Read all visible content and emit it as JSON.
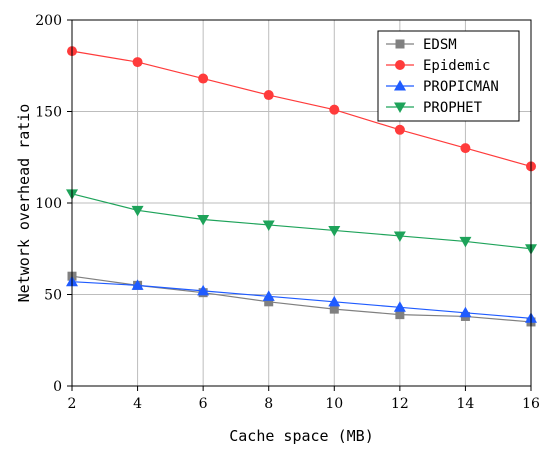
{
  "chart_data": {
    "type": "line",
    "xlabel": "Cache space (MB)",
    "ylabel": "Network overhead ratio",
    "x": [
      2,
      4,
      6,
      8,
      10,
      12,
      14,
      16
    ],
    "xlim": [
      2,
      16
    ],
    "ylim": [
      0,
      200
    ],
    "xticks": [
      "2",
      "4",
      "6",
      "8",
      "10",
      "12",
      "14",
      "16"
    ],
    "yticks": [
      "0",
      "50",
      "100",
      "150",
      "200"
    ],
    "grid": true,
    "legend_position": "top-right",
    "series": [
      {
        "name": "EDSM",
        "color": "#808080",
        "marker": "square",
        "values": [
          60,
          55,
          51,
          46,
          42,
          39,
          38,
          35
        ]
      },
      {
        "name": "Epidemic",
        "color": "#ff3b3b",
        "marker": "circle",
        "values": [
          183,
          177,
          168,
          159,
          151,
          140,
          130,
          120
        ]
      },
      {
        "name": "PROPICMAN",
        "color": "#1f5bff",
        "marker": "triangle-up",
        "values": [
          57,
          55,
          52,
          49,
          46,
          43,
          40,
          37
        ]
      },
      {
        "name": "PROPHET",
        "color": "#1ea35a",
        "marker": "triangle-down",
        "values": [
          105,
          96,
          91,
          88,
          85,
          82,
          79,
          75
        ]
      }
    ]
  }
}
